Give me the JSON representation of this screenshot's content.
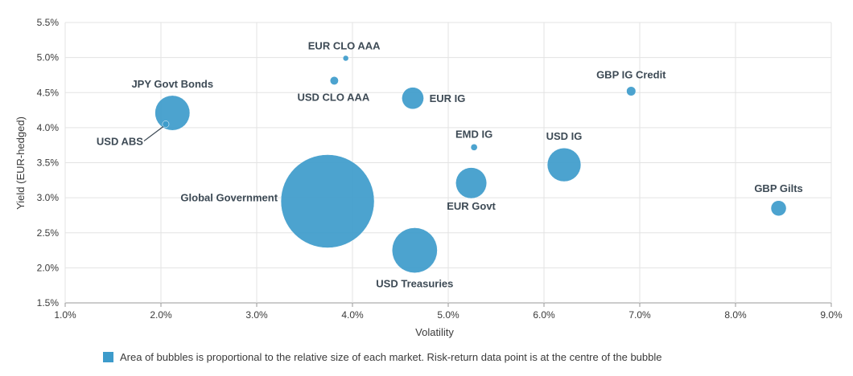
{
  "chart_data": {
    "type": "scatter",
    "subtype": "bubble",
    "xlabel": "Volatility",
    "ylabel": "Yield (EUR-hedged)",
    "xlim": [
      1.0,
      9.0
    ],
    "ylim": [
      1.5,
      5.5
    ],
    "x_ticks": [
      "1.0%",
      "2.0%",
      "3.0%",
      "4.0%",
      "5.0%",
      "6.0%",
      "7.0%",
      "8.0%",
      "9.0%"
    ],
    "y_ticks": [
      "1.5%",
      "2.0%",
      "2.5%",
      "3.0%",
      "3.5%",
      "4.0%",
      "4.5%",
      "5.0%",
      "5.5%"
    ],
    "grid": true,
    "bubble_color": "#3d9bcb",
    "points": [
      {
        "label": "JPY Govt Bonds",
        "x": 2.12,
        "y": 4.21,
        "relative_size": 0.14
      },
      {
        "label": "USD ABS",
        "x": 2.05,
        "y": 4.05,
        "relative_size": 0.005
      },
      {
        "label": "EUR CLO AAA",
        "x": 3.93,
        "y": 4.99,
        "relative_size": 0.002
      },
      {
        "label": "USD CLO AAA",
        "x": 3.81,
        "y": 4.67,
        "relative_size": 0.008
      },
      {
        "label": "EUR IG",
        "x": 4.63,
        "y": 4.42,
        "relative_size": 0.055
      },
      {
        "label": "EMD IG",
        "x": 5.27,
        "y": 3.72,
        "relative_size": 0.005
      },
      {
        "label": "GBP IG Credit",
        "x": 6.91,
        "y": 4.52,
        "relative_size": 0.01
      },
      {
        "label": "USD IG",
        "x": 6.21,
        "y": 3.47,
        "relative_size": 0.13
      },
      {
        "label": "Global Government",
        "x": 3.74,
        "y": 2.95,
        "relative_size": 1.0
      },
      {
        "label": "EUR Govt",
        "x": 5.24,
        "y": 3.21,
        "relative_size": 0.11
      },
      {
        "label": "USD Treasuries",
        "x": 4.65,
        "y": 2.25,
        "relative_size": 0.235
      },
      {
        "label": "GBP Gilts",
        "x": 8.45,
        "y": 2.85,
        "relative_size": 0.027
      }
    ],
    "legend": {
      "text": "Area of bubbles is proportional to the relative size of each market. Risk-return data point is at the centre of the bubble",
      "position": "bottom"
    }
  }
}
